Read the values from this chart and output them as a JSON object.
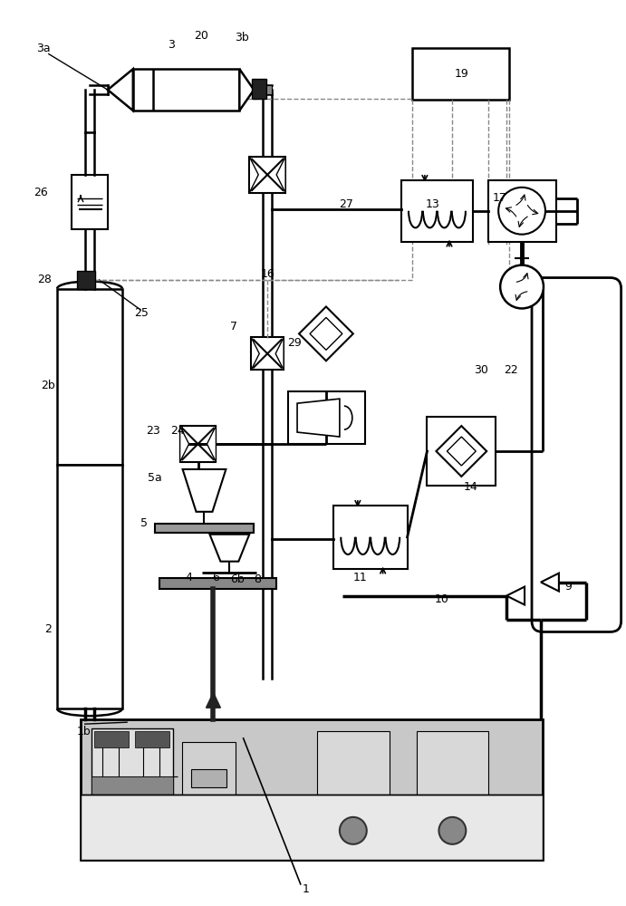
{
  "bg_color": "#ffffff",
  "lc": "#000000",
  "dc": "#888888",
  "gc": "#aaaaaa",
  "labels": [
    [
      "1",
      338,
      983
    ],
    [
      "1b",
      92,
      808
    ],
    [
      "2",
      52,
      695
    ],
    [
      "2b",
      52,
      425
    ],
    [
      "3",
      188,
      48
    ],
    [
      "3a",
      47,
      52
    ],
    [
      "3b",
      267,
      40
    ],
    [
      "4",
      208,
      638
    ],
    [
      "5",
      158,
      578
    ],
    [
      "5a",
      170,
      528
    ],
    [
      "6",
      238,
      638
    ],
    [
      "6b",
      262,
      640
    ],
    [
      "7",
      258,
      360
    ],
    [
      "8",
      284,
      640
    ],
    [
      "9",
      628,
      648
    ],
    [
      "10",
      488,
      662
    ],
    [
      "11",
      398,
      638
    ],
    [
      "13",
      478,
      225
    ],
    [
      "14",
      520,
      538
    ],
    [
      "16",
      295,
      302
    ],
    [
      "17",
      552,
      218
    ],
    [
      "19",
      510,
      80
    ],
    [
      "20",
      222,
      38
    ],
    [
      "22",
      565,
      408
    ],
    [
      "23",
      168,
      475
    ],
    [
      "24",
      195,
      475
    ],
    [
      "25",
      155,
      345
    ],
    [
      "26",
      44,
      212
    ],
    [
      "27",
      382,
      225
    ],
    [
      "28",
      48,
      308
    ],
    [
      "29",
      325,
      378
    ],
    [
      "30",
      532,
      408
    ]
  ]
}
